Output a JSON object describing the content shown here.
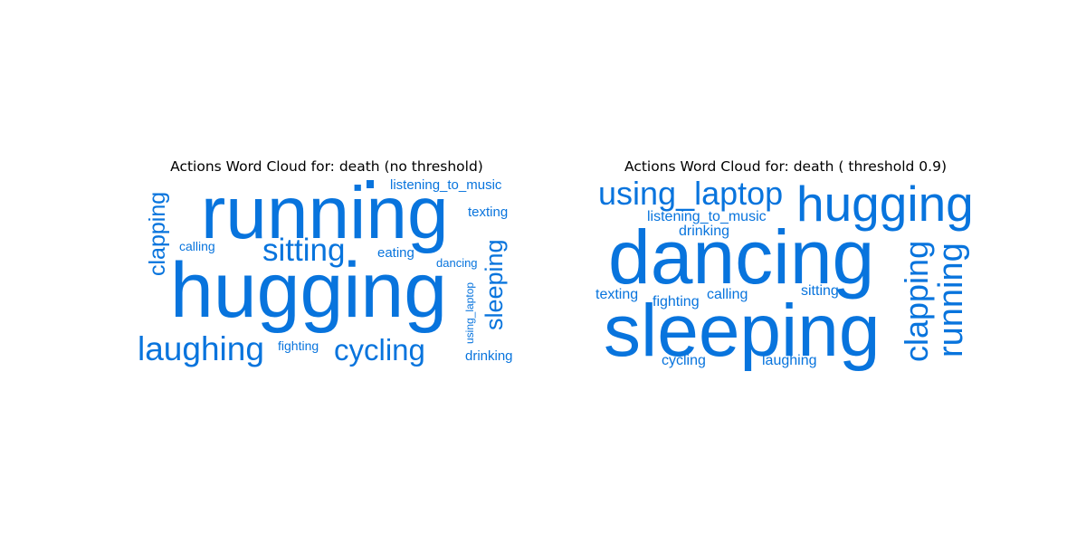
{
  "chart_data": [
    {
      "type": "wordcloud",
      "title": "Actions Word Cloud for: death (no threshold)",
      "color": "#0874dd",
      "words": [
        {
          "text": "running",
          "weight": 1.0,
          "orientation": "horizontal"
        },
        {
          "text": "hugging",
          "weight": 1.0,
          "orientation": "horizontal"
        },
        {
          "text": "sitting",
          "weight": 0.45,
          "orientation": "horizontal"
        },
        {
          "text": "laughing",
          "weight": 0.45,
          "orientation": "horizontal"
        },
        {
          "text": "cycling",
          "weight": 0.42,
          "orientation": "horizontal"
        },
        {
          "text": "clapping",
          "weight": 0.3,
          "orientation": "vertical"
        },
        {
          "text": "sleeping",
          "weight": 0.33,
          "orientation": "vertical"
        },
        {
          "text": "listening_to_music",
          "weight": 0.2,
          "orientation": "horizontal"
        },
        {
          "text": "texting",
          "weight": 0.2,
          "orientation": "horizontal"
        },
        {
          "text": "drinking",
          "weight": 0.2,
          "orientation": "horizontal"
        },
        {
          "text": "eating",
          "weight": 0.19,
          "orientation": "horizontal"
        },
        {
          "text": "calling",
          "weight": 0.18,
          "orientation": "horizontal"
        },
        {
          "text": "fighting",
          "weight": 0.18,
          "orientation": "horizontal"
        },
        {
          "text": "dancing",
          "weight": 0.17,
          "orientation": "horizontal"
        },
        {
          "text": "using_laptop",
          "weight": 0.15,
          "orientation": "vertical"
        }
      ]
    },
    {
      "type": "wordcloud",
      "title": "Actions Word Cloud for: death ( threshold 0.9)",
      "color": "#0874dd",
      "words": [
        {
          "text": "dancing",
          "weight": 1.0,
          "orientation": "horizontal"
        },
        {
          "text": "sleeping",
          "weight": 1.0,
          "orientation": "horizontal"
        },
        {
          "text": "hugging",
          "weight": 0.7,
          "orientation": "horizontal"
        },
        {
          "text": "using_laptop",
          "weight": 0.45,
          "orientation": "horizontal"
        },
        {
          "text": "clapping",
          "weight": 0.45,
          "orientation": "vertical"
        },
        {
          "text": "running",
          "weight": 0.45,
          "orientation": "vertical"
        },
        {
          "text": "listening_to_music",
          "weight": 0.22,
          "orientation": "horizontal"
        },
        {
          "text": "drinking",
          "weight": 0.22,
          "orientation": "horizontal"
        },
        {
          "text": "texting",
          "weight": 0.22,
          "orientation": "horizontal"
        },
        {
          "text": "fighting",
          "weight": 0.22,
          "orientation": "horizontal"
        },
        {
          "text": "calling",
          "weight": 0.22,
          "orientation": "horizontal"
        },
        {
          "text": "sitting",
          "weight": 0.22,
          "orientation": "horizontal"
        },
        {
          "text": "cycling",
          "weight": 0.22,
          "orientation": "horizontal"
        },
        {
          "text": "laughing",
          "weight": 0.22,
          "orientation": "horizontal"
        }
      ]
    }
  ]
}
